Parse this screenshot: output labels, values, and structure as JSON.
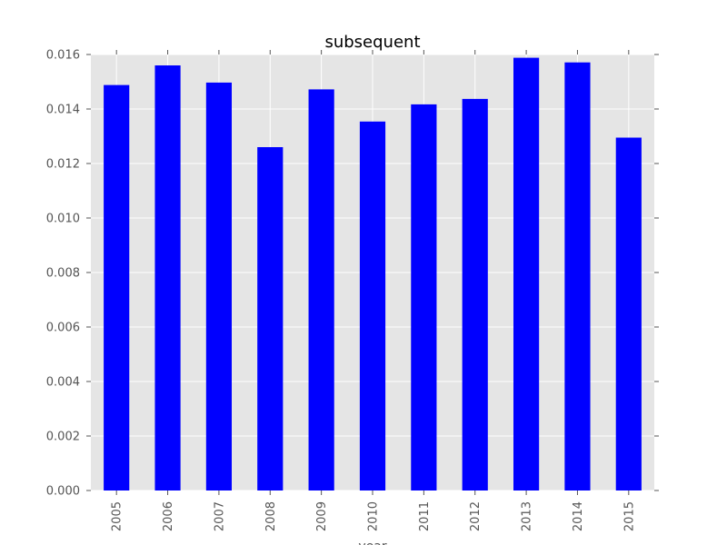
{
  "chart_data": {
    "type": "bar",
    "title": "subsequent",
    "xlabel": "year",
    "ylabel": "",
    "categories": [
      "2005",
      "2006",
      "2007",
      "2008",
      "2009",
      "2010",
      "2011",
      "2012",
      "2013",
      "2014",
      "2015"
    ],
    "values": [
      0.01488,
      0.0156,
      0.01497,
      0.0126,
      0.01472,
      0.01354,
      0.01417,
      0.01437,
      0.01588,
      0.01571,
      0.01295
    ],
    "ylim": [
      0,
      0.016
    ],
    "yticks": [
      "0.000",
      "0.002",
      "0.004",
      "0.006",
      "0.008",
      "0.010",
      "0.012",
      "0.014",
      "0.016"
    ],
    "grid": true,
    "bar_color": "#0000ff",
    "background_color": "#e5e5e5"
  }
}
